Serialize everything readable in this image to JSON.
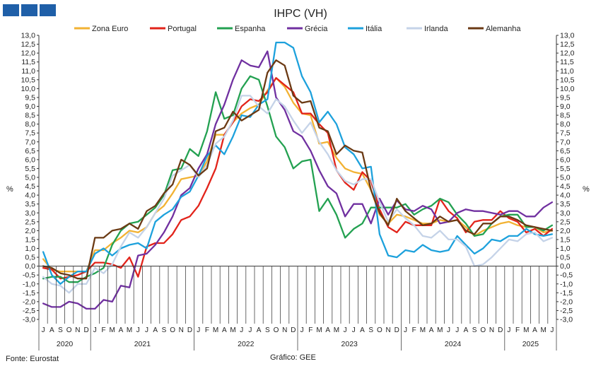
{
  "header": {
    "logo_icon": "gee-logo-icon",
    "brand_color": "#1f5fa8"
  },
  "footer": {
    "source": "Fonte: Eurostat",
    "credit": "Gráfico: GEE"
  },
  "chart_data": {
    "type": "line",
    "title": "IHPC (VH)",
    "ylabel_left": "%",
    "ylabel_right": "%",
    "ylim": [
      -3,
      13
    ],
    "ytick_step": 0.5,
    "grid": false,
    "legend_position": "top",
    "x": [
      "J",
      "A",
      "S",
      "O",
      "N",
      "D",
      "J",
      "F",
      "M",
      "A",
      "M",
      "J",
      "J",
      "A",
      "S",
      "O",
      "N",
      "D",
      "J",
      "F",
      "M",
      "A",
      "M",
      "J",
      "J",
      "A",
      "S",
      "O",
      "N",
      "D",
      "J",
      "F",
      "M",
      "A",
      "M",
      "J",
      "J",
      "A",
      "S",
      "O",
      "N",
      "D",
      "J",
      "F",
      "M",
      "A",
      "M",
      "J",
      "J",
      "A",
      "S",
      "O",
      "N",
      "D",
      "J",
      "F",
      "M",
      "A",
      "M",
      "J"
    ],
    "years": [
      {
        "label": "2020",
        "start": 0,
        "end": 5
      },
      {
        "label": "2021",
        "start": 6,
        "end": 17
      },
      {
        "label": "2022",
        "start": 18,
        "end": 29
      },
      {
        "label": "2023",
        "start": 30,
        "end": 41
      },
      {
        "label": "2024",
        "start": 42,
        "end": 53
      },
      {
        "label": "2025",
        "start": 54,
        "end": 59
      }
    ],
    "series": [
      {
        "name": "Zona Euro",
        "color": "#f2b233",
        "values": [
          0.4,
          -0.2,
          -0.3,
          -0.3,
          -0.3,
          -0.3,
          0.9,
          0.9,
          1.3,
          1.6,
          2.0,
          1.9,
          2.2,
          3.0,
          3.4,
          4.1,
          4.9,
          5.0,
          5.1,
          5.9,
          7.4,
          7.4,
          8.1,
          8.6,
          8.9,
          9.1,
          9.9,
          10.6,
          10.1,
          9.2,
          8.6,
          8.5,
          6.9,
          7.0,
          6.1,
          5.5,
          5.3,
          5.2,
          4.3,
          2.9,
          2.4,
          2.9,
          2.8,
          2.6,
          2.4,
          2.4,
          2.6,
          2.5,
          2.6,
          2.2,
          1.7,
          2.0,
          2.2,
          2.4,
          2.5,
          2.3,
          2.2,
          2.2,
          1.9,
          2.0
        ]
      },
      {
        "name": "Portugal",
        "color": "#e2231a",
        "values": [
          -0.1,
          -0.2,
          -0.7,
          -0.6,
          -0.5,
          -0.3,
          0.2,
          0.2,
          0.1,
          -0.1,
          0.5,
          -0.6,
          1.1,
          1.3,
          1.3,
          1.8,
          2.6,
          2.8,
          3.4,
          4.4,
          5.5,
          7.4,
          8.1,
          9.0,
          9.4,
          9.3,
          9.8,
          10.6,
          10.2,
          9.8,
          8.6,
          8.6,
          8.0,
          7.5,
          5.4,
          4.7,
          4.3,
          5.3,
          4.8,
          3.2,
          2.2,
          1.9,
          2.5,
          2.3,
          2.3,
          2.3,
          3.8,
          3.1,
          2.7,
          1.9,
          2.5,
          2.6,
          2.6,
          3.1,
          2.7,
          2.5,
          1.9,
          2.1,
          1.7,
          2.1
        ]
      },
      {
        "name": "Espanha",
        "color": "#23a151",
        "values": [
          -0.7,
          -0.6,
          -0.6,
          -0.9,
          -0.9,
          -0.6,
          -0.4,
          -0.1,
          1.2,
          2.0,
          2.4,
          2.5,
          2.9,
          3.3,
          4.0,
          5.4,
          5.5,
          6.6,
          6.2,
          7.6,
          9.8,
          8.3,
          8.5,
          10.0,
          10.7,
          10.5,
          9.0,
          7.3,
          6.7,
          5.5,
          5.9,
          6.0,
          3.1,
          3.8,
          2.9,
          1.6,
          2.1,
          2.4,
          3.3,
          3.3,
          3.3,
          3.3,
          3.5,
          2.9,
          3.2,
          3.4,
          3.8,
          3.6,
          2.9,
          2.4,
          1.7,
          1.8,
          2.4,
          2.8,
          2.9,
          2.9,
          2.2,
          2.2,
          2.0,
          2.3
        ]
      },
      {
        "name": "Grécia",
        "color": "#7030a0",
        "values": [
          -2.1,
          -2.3,
          -2.3,
          -2.0,
          -2.1,
          -2.4,
          -2.4,
          -1.9,
          -2.0,
          -1.1,
          -1.2,
          0.6,
          0.7,
          1.2,
          1.9,
          2.8,
          4.0,
          4.4,
          5.5,
          6.3,
          8.0,
          9.1,
          10.5,
          11.6,
          11.3,
          11.2,
          12.1,
          9.5,
          8.8,
          7.6,
          7.3,
          6.5,
          5.4,
          4.5,
          4.1,
          2.8,
          3.5,
          3.5,
          2.4,
          3.8,
          2.9,
          3.7,
          3.2,
          3.1,
          3.4,
          3.2,
          2.4,
          2.5,
          3.0,
          3.2,
          3.1,
          3.1,
          3.0,
          2.9,
          3.1,
          3.1,
          2.8,
          2.8,
          3.3,
          3.6
        ]
      },
      {
        "name": "Itália",
        "color": "#1da1dc",
        "values": [
          0.8,
          -0.5,
          -1.0,
          -0.6,
          -0.3,
          -0.3,
          0.7,
          1.0,
          0.6,
          1.0,
          1.2,
          1.3,
          1.0,
          2.5,
          2.9,
          3.2,
          3.9,
          4.2,
          5.1,
          6.2,
          6.8,
          6.3,
          7.3,
          8.5,
          8.4,
          9.1,
          9.4,
          12.6,
          12.6,
          12.3,
          10.7,
          9.8,
          8.1,
          8.7,
          8.0,
          6.7,
          6.3,
          5.5,
          5.6,
          1.8,
          0.6,
          0.5,
          0.9,
          0.8,
          1.2,
          0.9,
          0.8,
          0.9,
          1.7,
          1.2,
          0.7,
          1.0,
          1.5,
          1.4,
          1.7,
          1.7,
          2.1,
          1.8,
          1.7,
          1.8
        ]
      },
      {
        "name": "Irlanda",
        "color": "#c5d3e8",
        "values": [
          -0.6,
          -1.0,
          -1.1,
          -1.5,
          -1.0,
          -1.0,
          -0.1,
          -0.4,
          0.1,
          1.1,
          1.9,
          1.6,
          2.2,
          3.0,
          3.8,
          5.1,
          5.4,
          5.7,
          5.0,
          5.7,
          6.9,
          7.3,
          8.2,
          9.6,
          9.6,
          9.0,
          8.6,
          9.4,
          9.0,
          8.2,
          7.5,
          8.1,
          7.0,
          6.3,
          5.4,
          4.8,
          4.6,
          4.9,
          4.9,
          3.6,
          2.5,
          3.2,
          2.7,
          2.3,
          1.7,
          1.6,
          2.0,
          1.5,
          1.5,
          1.1,
          0.0,
          0.1,
          0.5,
          1.0,
          1.5,
          1.4,
          1.8,
          1.9,
          1.4,
          1.6
        ]
      },
      {
        "name": "Alemanha",
        "color": "#6b3a14",
        "values": [
          0.0,
          -0.1,
          -0.4,
          -0.5,
          -0.7,
          -0.7,
          1.6,
          1.6,
          2.0,
          2.1,
          2.4,
          2.1,
          3.1,
          3.4,
          4.1,
          4.6,
          6.0,
          5.7,
          5.1,
          5.5,
          7.6,
          7.8,
          8.7,
          8.2,
          8.5,
          8.8,
          10.9,
          11.6,
          11.3,
          9.6,
          9.2,
          9.3,
          7.8,
          7.6,
          6.3,
          6.8,
          6.5,
          6.4,
          4.3,
          3.0,
          2.3,
          3.8,
          3.1,
          2.7,
          2.3,
          2.4,
          2.8,
          2.5,
          2.6,
          2.0,
          1.8,
          2.4,
          2.4,
          2.8,
          2.8,
          2.6,
          2.3,
          2.2,
          2.1,
          2.0
        ]
      }
    ]
  }
}
